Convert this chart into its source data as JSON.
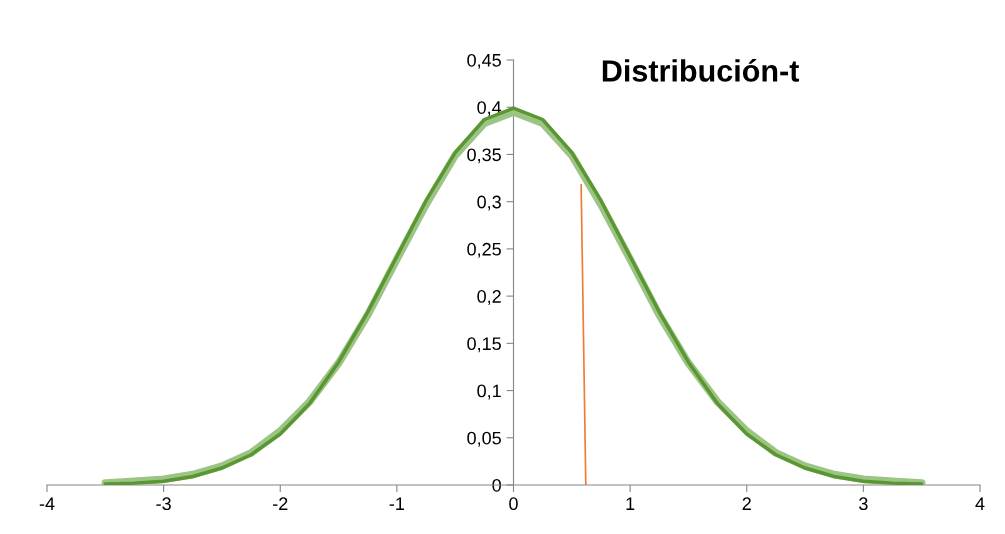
{
  "chart_data": {
    "type": "line",
    "title": "Distribución-t",
    "series": [
      {
        "color": "#5a9632",
        "x": [
          -3.5,
          -3.25,
          -3,
          -2.75,
          -2.5,
          -2.25,
          -2,
          -1.75,
          -1.5,
          -1.25,
          -1,
          -0.75,
          -0.5,
          -0.25,
          0,
          0.25,
          0.5,
          0.75,
          1,
          1.25,
          1.5,
          1.75,
          2,
          2.25,
          2.5,
          2.75,
          3,
          3.25,
          3.5
        ],
        "values": [
          0.001,
          0.002,
          0.004,
          0.009,
          0.018,
          0.032,
          0.054,
          0.086,
          0.13,
          0.183,
          0.242,
          0.301,
          0.352,
          0.387,
          0.399,
          0.387,
          0.352,
          0.301,
          0.242,
          0.183,
          0.13,
          0.086,
          0.054,
          0.032,
          0.018,
          0.009,
          0.004,
          0.002,
          0.001
        ]
      },
      {
        "color": "#9cc585",
        "x": [
          -3.5,
          -3.25,
          -3,
          -2.75,
          -2.5,
          -2.25,
          -2,
          -1.75,
          -1.5,
          -1.25,
          -1,
          -0.75,
          -0.5,
          -0.25,
          0,
          0.25,
          0.5,
          0.75,
          1,
          1.25,
          1.5,
          1.75,
          2,
          2.25,
          2.5,
          2.75,
          3,
          3.25,
          3.5
        ],
        "values": [
          0.002,
          0.004,
          0.006,
          0.011,
          0.02,
          0.034,
          0.057,
          0.088,
          0.129,
          0.18,
          0.239,
          0.297,
          0.349,
          0.383,
          0.395,
          0.383,
          0.349,
          0.297,
          0.239,
          0.18,
          0.129,
          0.088,
          0.057,
          0.034,
          0.02,
          0.011,
          0.006,
          0.004,
          0.002
        ]
      },
      {
        "color": "#ed7d31",
        "x": [
          0.62,
          0.58
        ],
        "values": [
          0,
          0.318
        ]
      }
    ],
    "xlim": [
      -4,
      4
    ],
    "xticks": [
      -4,
      -3,
      -2,
      -1,
      0,
      1,
      2,
      3,
      4
    ],
    "ylim": [
      0,
      0.45
    ],
    "yticks": [
      {
        "value": 0,
        "label": "0"
      },
      {
        "value": 0.05,
        "label": "0,05"
      },
      {
        "value": 0.1,
        "label": "0,1"
      },
      {
        "value": 0.15,
        "label": "0,15"
      },
      {
        "value": 0.2,
        "label": "0,2"
      },
      {
        "value": 0.25,
        "label": "0,25"
      },
      {
        "value": 0.3,
        "label": "0,3"
      },
      {
        "value": 0.35,
        "label": "0,35"
      },
      {
        "value": 0.4,
        "label": "0,4"
      },
      {
        "value": 0.45,
        "label": "0,45"
      }
    ],
    "grid": false
  }
}
